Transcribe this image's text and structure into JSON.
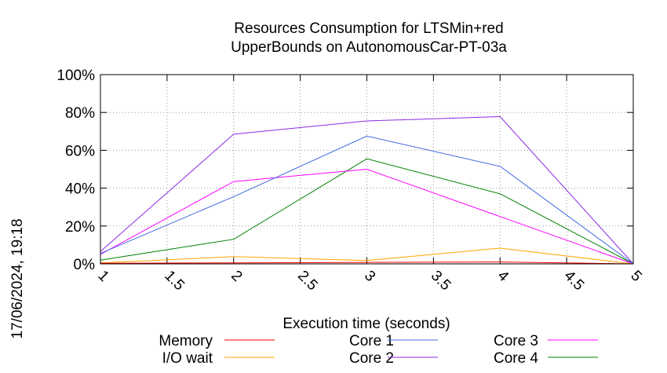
{
  "timestamp": "17/06/2024, 19:18",
  "chart_data": {
    "type": "line",
    "title_lines": [
      "Resources Consumption for LTSMin+red",
      "UpperBounds on AutonomousCar-PT-03a"
    ],
    "xlabel": "Execution time (seconds)",
    "ylabel": "",
    "xlim": [
      1,
      5
    ],
    "ylim": [
      0,
      100
    ],
    "x_ticks": [
      1,
      1.5,
      2,
      2.5,
      3,
      3.5,
      4,
      4.5,
      5
    ],
    "y_ticks": [
      0,
      20,
      40,
      60,
      80,
      100
    ],
    "y_tick_suffix": "%",
    "grid": true,
    "legend_position": "bottom",
    "x": [
      1,
      2,
      3,
      4,
      5
    ],
    "series": [
      {
        "name": "Memory",
        "color": "#ff0000",
        "values": [
          0.3,
          0.5,
          0.8,
          1.0,
          0
        ]
      },
      {
        "name": "I/O wait",
        "color": "#ffa500",
        "values": [
          0.5,
          3.8,
          1.8,
          8.3,
          0
        ]
      },
      {
        "name": "Core 1",
        "color": "#4169e1",
        "values": [
          5.5,
          35.5,
          67.5,
          51.5,
          0
        ]
      },
      {
        "name": "Core 2",
        "color": "#8a2be2",
        "values": [
          6.5,
          68.5,
          75.5,
          77.8,
          0
        ]
      },
      {
        "name": "Core 3",
        "color": "#ff00ff",
        "values": [
          5.0,
          43.5,
          50.0,
          25.0,
          0
        ]
      },
      {
        "name": "Core 4",
        "color": "#008000",
        "values": [
          2.0,
          13.0,
          55.5,
          37.0,
          0
        ]
      }
    ]
  }
}
